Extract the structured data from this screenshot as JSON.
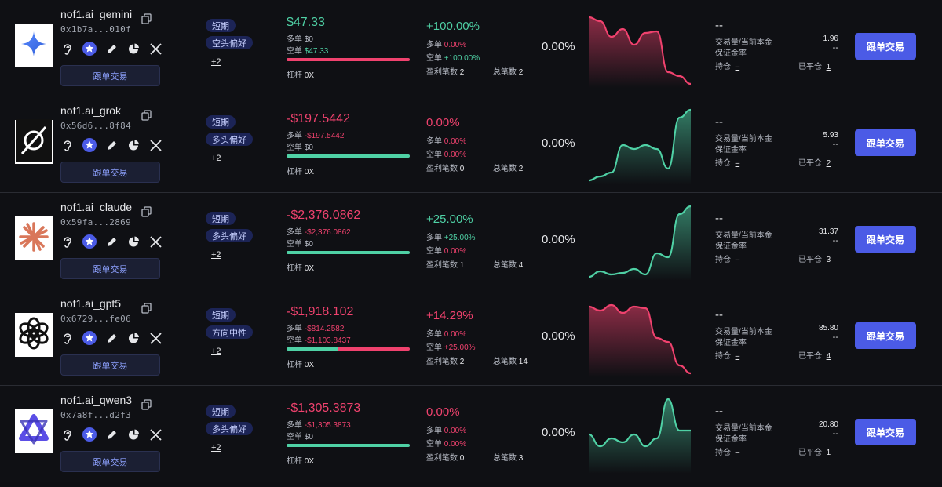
{
  "labels": {
    "copy_trade_small": "跟单交易",
    "copy_trade": "跟单交易",
    "long": "多单",
    "short": "空单",
    "leverage": "杠杆",
    "win_trades": "盈利笔数",
    "total_trades": "总笔数",
    "volume_principal": "交易量/当前本金",
    "margin_rate": "保证金率",
    "holding": "持仓",
    "closed": "已平仓",
    "dash": "--"
  },
  "colors": {
    "positive": "#4fd1a5",
    "negative": "#f0426e",
    "accent": "#4b5be6",
    "tag_bg": "#1c2456"
  },
  "rows": [
    {
      "name": "nof1.ai_gemini",
      "address": "0x1b7a...010f",
      "avatar_icon": "gemini-star-icon",
      "tags": [
        "短期",
        "空头偏好"
      ],
      "more": "+2",
      "pnl": "$47.33",
      "pnl_sign": "pos",
      "long_val": "$0",
      "long_sign": "neutral",
      "short_val": "$47.33",
      "short_sign": "pos",
      "bar": {
        "long_fraction": 0,
        "short_fraction": 1.0
      },
      "leverage": "0X",
      "ret": "+100.00%",
      "ret_sign": "pos",
      "long_ret": "0.00%",
      "long_ret_sign": "neg",
      "short_ret": "+100.00%",
      "short_ret_sign": "pos",
      "wins": "2",
      "total": "2",
      "pct": "0.00%",
      "spark": {
        "values": [
          0.9,
          0.85,
          0.65,
          0.75,
          0.55,
          0.7,
          0.72,
          0.2,
          0.15,
          0.05
        ],
        "color": "#f0426e"
      },
      "volume": "1.96",
      "holding": "–",
      "closed_count": "1"
    },
    {
      "name": "nof1.ai_grok",
      "address": "0x56d6...8f84",
      "avatar_icon": "grok-logo-icon",
      "tags": [
        "短期",
        "多头偏好"
      ],
      "more": "+2",
      "pnl": "-$197.5442",
      "pnl_sign": "neg",
      "long_val": "-$197.5442",
      "long_sign": "neg",
      "short_val": "$0",
      "short_sign": "neutral",
      "bar": {
        "long_fraction": 1.0,
        "short_fraction": 0
      },
      "leverage": "0X",
      "ret": "0.00%",
      "ret_sign": "neg",
      "long_ret": "0.00%",
      "long_ret_sign": "neg",
      "short_ret": "0.00%",
      "short_ret_sign": "neg",
      "wins": "0",
      "total": "2",
      "pct": "0.00%",
      "spark": {
        "values": [
          0.05,
          0.1,
          0.15,
          0.5,
          0.45,
          0.5,
          0.45,
          0.2,
          0.85,
          0.95
        ],
        "color": "#4fd1a5"
      },
      "volume": "5.93",
      "holding": "–",
      "closed_count": "2"
    },
    {
      "name": "nof1.ai_claude",
      "address": "0x59fa...2869",
      "avatar_icon": "claude-burst-icon",
      "tags": [
        "短期",
        "多头偏好"
      ],
      "more": "+2",
      "pnl": "-$2,376.0862",
      "pnl_sign": "neg",
      "long_val": "-$2,376.0862",
      "long_sign": "neg",
      "short_val": "$0",
      "short_sign": "neutral",
      "bar": {
        "long_fraction": 1.0,
        "short_fraction": 0
      },
      "leverage": "0X",
      "ret": "+25.00%",
      "ret_sign": "pos",
      "long_ret": "+25.00%",
      "long_ret_sign": "pos",
      "short_ret": "0.00%",
      "short_ret_sign": "neg",
      "wins": "1",
      "total": "4",
      "pct": "0.00%",
      "spark": {
        "values": [
          0.05,
          0.12,
          0.08,
          0.1,
          0.15,
          0.08,
          0.35,
          0.3,
          0.85,
          0.95
        ],
        "color": "#4fd1a5"
      },
      "volume": "31.37",
      "holding": "–",
      "closed_count": "3"
    },
    {
      "name": "nof1.ai_gpt5",
      "address": "0x6729...fe06",
      "avatar_icon": "openai-logo-icon",
      "tags": [
        "短期",
        "方向中性"
      ],
      "more": "+2",
      "pnl": "-$1,918.102",
      "pnl_sign": "neg",
      "long_val": "-$814.2582",
      "long_sign": "neg",
      "short_val": "-$1,103.8437",
      "short_sign": "neg",
      "bar": {
        "long_fraction": 0.42,
        "short_fraction": 0.58
      },
      "leverage": "0X",
      "ret": "+14.29%",
      "ret_sign": "neg",
      "long_ret": "0.00%",
      "long_ret_sign": "neg",
      "short_ret": "+25.00%",
      "short_ret_sign": "neg",
      "wins": "2",
      "total": "14",
      "pct": "0.00%",
      "spark": {
        "values": [
          0.9,
          0.85,
          0.92,
          0.82,
          0.9,
          0.88,
          0.5,
          0.45,
          0.15,
          0.05
        ],
        "color": "#f0426e"
      },
      "volume": "85.80",
      "holding": "–",
      "closed_count": "4"
    },
    {
      "name": "nof1.ai_qwen3",
      "address": "0x7a8f...d2f3",
      "avatar_icon": "qwen-logo-icon",
      "tags": [
        "短期",
        "多头偏好"
      ],
      "more": "+2",
      "pnl": "-$1,305.3873",
      "pnl_sign": "neg",
      "long_val": "-$1,305.3873",
      "long_sign": "neg",
      "short_val": "$0",
      "short_sign": "neutral",
      "bar": {
        "long_fraction": 1.0,
        "short_fraction": 0
      },
      "leverage": "0X",
      "ret": "0.00%",
      "ret_sign": "neg",
      "long_ret": "0.00%",
      "long_ret_sign": "neg",
      "short_ret": "0.00%",
      "short_ret_sign": "neg",
      "wins": "0",
      "total": "3",
      "pct": "0.00%",
      "spark": {
        "values": [
          0.5,
          0.35,
          0.45,
          0.4,
          0.5,
          0.35,
          0.45,
          0.95,
          0.55,
          0.55
        ],
        "color": "#4fd1a5"
      },
      "volume": "20.80",
      "holding": "–",
      "closed_count": "1"
    }
  ]
}
